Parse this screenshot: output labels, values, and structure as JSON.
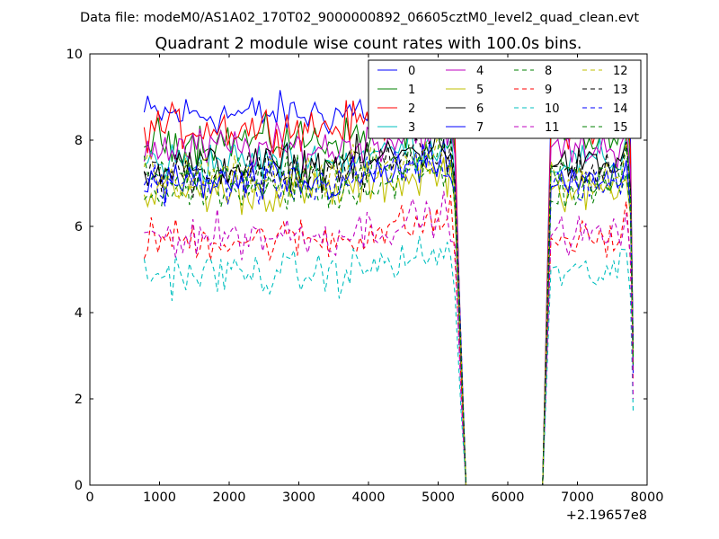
{
  "chart_data": {
    "type": "line",
    "suptitle": "Data file: modeM0/AS1A02_170T02_9000000892_06605cztM0_level2_quad_clean.evt",
    "title": "Quadrant 2 module wise count rates with 100.0s bins.",
    "xlabel": "",
    "ylabel": "",
    "x_offset_label": "+2.19657e8",
    "xlim": [
      0,
      8000
    ],
    "ylim": [
      0,
      10
    ],
    "x_ticks": [
      "0",
      "1000",
      "2000",
      "3000",
      "4000",
      "5000",
      "6000",
      "7000",
      "8000"
    ],
    "y_ticks": [
      "0",
      "2",
      "4",
      "6",
      "8",
      "10"
    ],
    "grid": false,
    "legend_position": "top-right",
    "gap": {
      "start": 5400,
      "end": 6500
    },
    "series": [
      {
        "name": "0",
        "color": "#0000ff",
        "style": "solid",
        "base": 8.6,
        "drop": 2.9
      },
      {
        "name": "1",
        "color": "#008000",
        "style": "solid",
        "base": 8.0,
        "drop": 3.1
      },
      {
        "name": "2",
        "color": "#ff0000",
        "style": "solid",
        "base": 8.3,
        "drop": 2.8
      },
      {
        "name": "3",
        "color": "#00bfbf",
        "style": "solid",
        "base": 7.5,
        "drop": 3.0
      },
      {
        "name": "4",
        "color": "#bf00bf",
        "style": "solid",
        "base": 7.8,
        "drop": 3.2
      },
      {
        "name": "5",
        "color": "#bfbf00",
        "style": "solid",
        "base": 6.8,
        "drop": 2.7
      },
      {
        "name": "6",
        "color": "#000000",
        "style": "solid",
        "base": 7.4,
        "drop": 3.0
      },
      {
        "name": "7",
        "color": "#0000ff",
        "style": "solid",
        "base": 7.0,
        "drop": 2.6
      },
      {
        "name": "8",
        "color": "#008000",
        "style": "dashed",
        "base": 6.8,
        "drop": 2.8
      },
      {
        "name": "9",
        "color": "#ff0000",
        "style": "dashed",
        "base": 5.7,
        "drop": 2.4
      },
      {
        "name": "10",
        "color": "#00bfbf",
        "style": "dashed",
        "base": 4.9,
        "drop": 1.7
      },
      {
        "name": "11",
        "color": "#bf00bf",
        "style": "dashed",
        "base": 5.8,
        "drop": 2.0
      },
      {
        "name": "12",
        "color": "#bfbf00",
        "style": "dashed",
        "base": 7.2,
        "drop": 3.0
      },
      {
        "name": "13",
        "color": "#000000",
        "style": "dashed",
        "base": 7.3,
        "drop": 3.1
      },
      {
        "name": "14",
        "color": "#0000ff",
        "style": "dashed",
        "base": 7.0,
        "drop": 3.3
      },
      {
        "name": "15",
        "color": "#008000",
        "style": "dashed",
        "base": 7.2,
        "drop": 3.0
      }
    ]
  }
}
